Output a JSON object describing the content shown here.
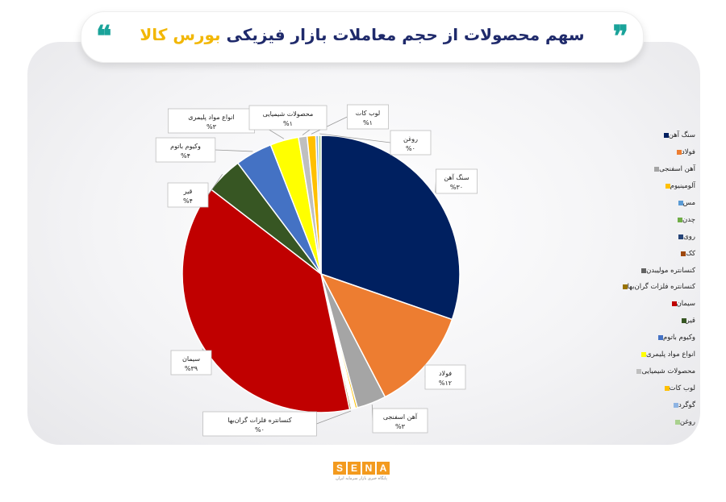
{
  "header": {
    "title_main": "سهم محصولات از حجم معاملات بازار فیزیکی",
    "title_accent": "بورس کالا",
    "quote_left": "❝",
    "quote_right": "❞"
  },
  "chart_data": {
    "type": "pie",
    "title": "سهم محصولات از حجم معاملات بازار فیزیکی بورس کالا",
    "unit": "%",
    "legend_position": "right",
    "slices": [
      {
        "name": "سنگ آهن",
        "value": 30.2,
        "label": "۳۰",
        "color": "#002060",
        "show_label": true
      },
      {
        "name": "فولاد",
        "value": 12.0,
        "label": "۱۲",
        "color": "#ed7d31",
        "show_label": true
      },
      {
        "name": "آهن اسفنجی",
        "value": 3.4,
        "label": "۳",
        "color": "#a5a5a5",
        "show_label": true
      },
      {
        "name": "آلومینیوم",
        "value": 0.25,
        "label": "",
        "color": "#ffc000",
        "show_label": false
      },
      {
        "name": "مس",
        "value": 0.1,
        "label": "",
        "color": "#5b9bd5",
        "show_label": false
      },
      {
        "name": "چدن",
        "value": 0.1,
        "label": "",
        "color": "#70ad47",
        "show_label": false
      },
      {
        "name": "روی",
        "value": 0.05,
        "label": "",
        "color": "#264478",
        "show_label": false
      },
      {
        "name": "کک",
        "value": 0.1,
        "label": "",
        "color": "#9e480e",
        "show_label": false
      },
      {
        "name": "کنسانتره مولیبدن",
        "value": 0.1,
        "label": "",
        "color": "#636363",
        "show_label": false
      },
      {
        "name": "کنسانتره فلزات گران‌بها",
        "value": 0.2,
        "label": "۰",
        "color": "#997300",
        "show_label": true
      },
      {
        "name": "سیمان",
        "value": 38.6,
        "label": "۳۹",
        "color": "#c00000",
        "show_label": true
      },
      {
        "name": "قیر",
        "value": 4.3,
        "label": "۴",
        "color": "#375623",
        "show_label": true
      },
      {
        "name": "وکیوم باتوم",
        "value": 4.3,
        "label": "۴",
        "color": "#4472c4",
        "show_label": true
      },
      {
        "name": "انواع مواد پلیمری",
        "value": 3.3,
        "label": "۳",
        "color": "#ffff00",
        "show_label": true
      },
      {
        "name": "محصولات شیمیایی",
        "value": 1.0,
        "label": "۱",
        "color": "#bfbfbf",
        "show_label": true
      },
      {
        "name": "لوب کات",
        "value": 1.0,
        "label": "۱",
        "color": "#ffc000",
        "show_label": true
      },
      {
        "name": "گوگرد",
        "value": 0.3,
        "label": "",
        "color": "#8eb4e3",
        "show_label": false
      },
      {
        "name": "روغن",
        "value": 0.3,
        "label": "۰",
        "color": "#a9d18e",
        "show_label": true
      }
    ]
  },
  "logo": {
    "letters": [
      "S",
      "E",
      "N",
      "A"
    ],
    "subtitle": "پایگاه خبری بازار سرمایه ایران"
  }
}
